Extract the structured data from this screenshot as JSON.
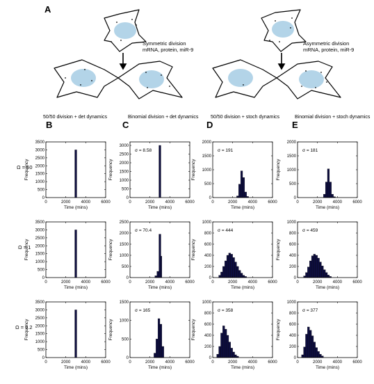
{
  "panel_letters": {
    "a": "A",
    "b": "B",
    "c": "C",
    "d": "D",
    "e": "E"
  },
  "column_titles": [
    "50/50 division + det dynamics",
    "Binomial division + det dynamics",
    "50/50 division + stoch dynamics",
    "Binomial division + stoch dynamics"
  ],
  "row_labels": [
    "Ω = 50",
    "Ω = 1",
    "Ω = 0.2"
  ],
  "schematic": {
    "symmetric_caption": [
      "Symmetric division",
      "mRNA, protein, miR-9"
    ],
    "asymmetric_caption": [
      "Asymmetric division",
      "mRNA, protein, miR-9"
    ]
  },
  "colors": {
    "bar": "#0d0d3f",
    "nucleus": "#b3d4e8"
  },
  "chart_data": [
    {
      "type": "bar",
      "row": 0,
      "col": 0,
      "xlabel": "Time (mins)",
      "ylabel": "Frequency",
      "xlim": [
        0,
        6000
      ],
      "ylim": [
        0,
        3500
      ],
      "yticks": [
        0,
        500,
        1000,
        1500,
        2000,
        2500,
        3000,
        3500
      ],
      "xticks": [
        0,
        2000,
        4000,
        6000
      ],
      "annotation": "",
      "bins": [
        {
          "x0": 2900,
          "x1": 3100,
          "y": 3000
        }
      ]
    },
    {
      "type": "bar",
      "row": 0,
      "col": 1,
      "xlabel": "Time (mins)",
      "ylabel": "Frequency",
      "xlim": [
        0,
        6000
      ],
      "ylim": [
        0,
        3200
      ],
      "yticks": [
        0,
        500,
        1000,
        1500,
        2000,
        2500,
        3000
      ],
      "xticks": [
        0,
        2000,
        4000,
        6000
      ],
      "annotation": "σ = 8.58",
      "bins": [
        {
          "x0": 2900,
          "x1": 3100,
          "y": 3000
        }
      ]
    },
    {
      "type": "bar",
      "row": 0,
      "col": 2,
      "xlabel": "Time (mins)",
      "ylabel": "Frequency",
      "xlim": [
        0,
        6000
      ],
      "ylim": [
        0,
        2000
      ],
      "yticks": [
        0,
        500,
        1000,
        1500,
        2000
      ],
      "xticks": [
        0,
        2000,
        4000,
        6000
      ],
      "annotation": "σ = 191",
      "bins": [
        {
          "x0": 2400,
          "x1": 2600,
          "y": 60
        },
        {
          "x0": 2600,
          "x1": 2800,
          "y": 480
        },
        {
          "x0": 2800,
          "x1": 3000,
          "y": 960
        },
        {
          "x0": 3000,
          "x1": 3200,
          "y": 720
        },
        {
          "x0": 3200,
          "x1": 3400,
          "y": 200
        },
        {
          "x0": 3400,
          "x1": 3600,
          "y": 40
        }
      ]
    },
    {
      "type": "bar",
      "row": 0,
      "col": 3,
      "xlabel": "Time (mins)",
      "ylabel": "Frequency",
      "xlim": [
        0,
        6000
      ],
      "ylim": [
        0,
        2000
      ],
      "yticks": [
        0,
        500,
        1000,
        1500,
        2000
      ],
      "xticks": [
        0,
        2000,
        4000,
        6000
      ],
      "annotation": "σ = 181",
      "bins": [
        {
          "x0": 2600,
          "x1": 2800,
          "y": 120
        },
        {
          "x0": 2800,
          "x1": 3000,
          "y": 560
        },
        {
          "x0": 3000,
          "x1": 3200,
          "y": 1030
        },
        {
          "x0": 3200,
          "x1": 3400,
          "y": 560
        },
        {
          "x0": 3400,
          "x1": 3600,
          "y": 120
        },
        {
          "x0": 3600,
          "x1": 3800,
          "y": 30
        }
      ]
    },
    {
      "type": "bar",
      "row": 1,
      "col": 0,
      "xlabel": "Time (mins)",
      "ylabel": "Frequency",
      "xlim": [
        0,
        6000
      ],
      "ylim": [
        0,
        3500
      ],
      "yticks": [
        0,
        500,
        1000,
        1500,
        2000,
        2500,
        3000,
        3500
      ],
      "xticks": [
        0,
        2000,
        4000,
        6000
      ],
      "annotation": "",
      "bins": [
        {
          "x0": 2900,
          "x1": 3100,
          "y": 3000
        }
      ]
    },
    {
      "type": "bar",
      "row": 1,
      "col": 1,
      "xlabel": "Time (mins)",
      "ylabel": "Frequency",
      "xlim": [
        0,
        6000
      ],
      "ylim": [
        0,
        2500
      ],
      "yticks": [
        0,
        500,
        1000,
        1500,
        2000,
        2500
      ],
      "xticks": [
        0,
        2000,
        4000,
        6000
      ],
      "annotation": "σ = 70.4",
      "bins": [
        {
          "x0": 2500,
          "x1": 2700,
          "y": 80
        },
        {
          "x0": 2700,
          "x1": 2900,
          "y": 280
        },
        {
          "x0": 2900,
          "x1": 3100,
          "y": 1950
        },
        {
          "x0": 3100,
          "x1": 3200,
          "y": 960
        }
      ]
    },
    {
      "type": "bar",
      "row": 1,
      "col": 2,
      "xlabel": "Time (mins)",
      "ylabel": "Frequency",
      "xlim": [
        0,
        6000
      ],
      "ylim": [
        0,
        1000
      ],
      "yticks": [
        0,
        200,
        400,
        600,
        800,
        1000
      ],
      "xticks": [
        0,
        2000,
        4000,
        6000
      ],
      "annotation": "σ = 444",
      "bins": [
        {
          "x0": 600,
          "x1": 800,
          "y": 40
        },
        {
          "x0": 800,
          "x1": 1000,
          "y": 100
        },
        {
          "x0": 1000,
          "x1": 1200,
          "y": 200
        },
        {
          "x0": 1200,
          "x1": 1400,
          "y": 300
        },
        {
          "x0": 1400,
          "x1": 1600,
          "y": 400
        },
        {
          "x0": 1600,
          "x1": 1800,
          "y": 440
        },
        {
          "x0": 1800,
          "x1": 2000,
          "y": 420
        },
        {
          "x0": 2000,
          "x1": 2200,
          "y": 360
        },
        {
          "x0": 2200,
          "x1": 2400,
          "y": 280
        },
        {
          "x0": 2400,
          "x1": 2600,
          "y": 200
        },
        {
          "x0": 2600,
          "x1": 2800,
          "y": 130
        },
        {
          "x0": 2800,
          "x1": 3000,
          "y": 80
        },
        {
          "x0": 3000,
          "x1": 3200,
          "y": 40
        },
        {
          "x0": 3200,
          "x1": 3400,
          "y": 20
        }
      ]
    },
    {
      "type": "bar",
      "row": 1,
      "col": 3,
      "xlabel": "Time (mins)",
      "ylabel": "Frequency",
      "xlim": [
        0,
        6000
      ],
      "ylim": [
        0,
        1000
      ],
      "yticks": [
        0,
        200,
        400,
        600,
        800,
        1000
      ],
      "xticks": [
        0,
        2000,
        4000,
        6000
      ],
      "annotation": "σ = 459",
      "bins": [
        {
          "x0": 600,
          "x1": 800,
          "y": 30
        },
        {
          "x0": 800,
          "x1": 1000,
          "y": 90
        },
        {
          "x0": 1000,
          "x1": 1200,
          "y": 190
        },
        {
          "x0": 1200,
          "x1": 1400,
          "y": 300
        },
        {
          "x0": 1400,
          "x1": 1600,
          "y": 390
        },
        {
          "x0": 1600,
          "x1": 1800,
          "y": 420
        },
        {
          "x0": 1800,
          "x1": 2000,
          "y": 400
        },
        {
          "x0": 2000,
          "x1": 2200,
          "y": 350
        },
        {
          "x0": 2200,
          "x1": 2400,
          "y": 280
        },
        {
          "x0": 2400,
          "x1": 2600,
          "y": 210
        },
        {
          "x0": 2600,
          "x1": 2800,
          "y": 140
        },
        {
          "x0": 2800,
          "x1": 3000,
          "y": 90
        },
        {
          "x0": 3000,
          "x1": 3200,
          "y": 45
        },
        {
          "x0": 3200,
          "x1": 3400,
          "y": 20
        }
      ]
    },
    {
      "type": "bar",
      "row": 2,
      "col": 0,
      "xlabel": "Time (mins)",
      "ylabel": "Frequency",
      "xlim": [
        0,
        6000
      ],
      "ylim": [
        0,
        3500
      ],
      "yticks": [
        0,
        500,
        1000,
        1500,
        2000,
        2500,
        3000,
        3500
      ],
      "xticks": [
        0,
        2000,
        4000,
        6000
      ],
      "annotation": "",
      "bins": [
        {
          "x0": 2900,
          "x1": 3100,
          "y": 3000
        }
      ]
    },
    {
      "type": "bar",
      "row": 2,
      "col": 1,
      "xlabel": "Time (mins)",
      "ylabel": "Frequency",
      "xlim": [
        0,
        6000
      ],
      "ylim": [
        0,
        1500
      ],
      "yticks": [
        0,
        500,
        1000,
        1500
      ],
      "xticks": [
        0,
        2000,
        4000,
        6000
      ],
      "annotation": "σ = 165",
      "bins": [
        {
          "x0": 2400,
          "x1": 2600,
          "y": 120
        },
        {
          "x0": 2600,
          "x1": 2800,
          "y": 500
        },
        {
          "x0": 2800,
          "x1": 3000,
          "y": 1050
        },
        {
          "x0": 3000,
          "x1": 3200,
          "y": 900
        },
        {
          "x0": 3200,
          "x1": 3400,
          "y": 300
        }
      ]
    },
    {
      "type": "bar",
      "row": 2,
      "col": 2,
      "xlabel": "Time (mins)",
      "ylabel": "Frequency",
      "xlim": [
        0,
        6000
      ],
      "ylim": [
        0,
        1000
      ],
      "yticks": [
        0,
        200,
        400,
        600,
        800,
        1000
      ],
      "xticks": [
        0,
        2000,
        4000,
        6000
      ],
      "annotation": "σ = 358",
      "bins": [
        {
          "x0": 400,
          "x1": 600,
          "y": 60
        },
        {
          "x0": 600,
          "x1": 800,
          "y": 200
        },
        {
          "x0": 800,
          "x1": 1000,
          "y": 440
        },
        {
          "x0": 1000,
          "x1": 1200,
          "y": 570
        },
        {
          "x0": 1200,
          "x1": 1400,
          "y": 510
        },
        {
          "x0": 1400,
          "x1": 1600,
          "y": 400
        },
        {
          "x0": 1600,
          "x1": 1800,
          "y": 280
        },
        {
          "x0": 1800,
          "x1": 2000,
          "y": 170
        },
        {
          "x0": 2000,
          "x1": 2200,
          "y": 100
        },
        {
          "x0": 2200,
          "x1": 2400,
          "y": 50
        },
        {
          "x0": 2400,
          "x1": 2600,
          "y": 25
        }
      ]
    },
    {
      "type": "bar",
      "row": 2,
      "col": 3,
      "xlabel": "Time (mins)",
      "ylabel": "Frequency",
      "xlim": [
        0,
        6000
      ],
      "ylim": [
        0,
        1000
      ],
      "yticks": [
        0,
        200,
        400,
        600,
        800,
        1000
      ],
      "xticks": [
        0,
        2000,
        4000,
        6000
      ],
      "annotation": "σ = 377",
      "bins": [
        {
          "x0": 400,
          "x1": 600,
          "y": 50
        },
        {
          "x0": 600,
          "x1": 800,
          "y": 190
        },
        {
          "x0": 800,
          "x1": 1000,
          "y": 420
        },
        {
          "x0": 1000,
          "x1": 1200,
          "y": 550
        },
        {
          "x0": 1200,
          "x1": 1400,
          "y": 490
        },
        {
          "x0": 1400,
          "x1": 1600,
          "y": 390
        },
        {
          "x0": 1600,
          "x1": 1800,
          "y": 280
        },
        {
          "x0": 1800,
          "x1": 2000,
          "y": 180
        },
        {
          "x0": 2000,
          "x1": 2200,
          "y": 110
        },
        {
          "x0": 2200,
          "x1": 2400,
          "y": 60
        },
        {
          "x0": 2400,
          "x1": 2600,
          "y": 30
        }
      ]
    }
  ]
}
